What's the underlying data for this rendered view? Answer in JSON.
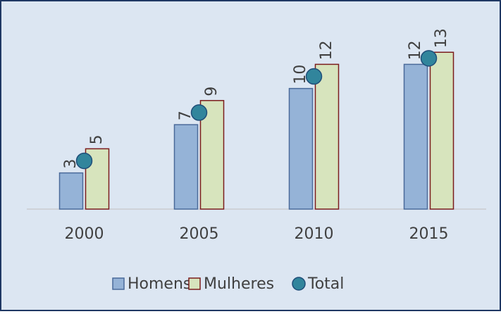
{
  "chart_data": {
    "type": "bar",
    "categories": [
      "2000",
      "2005",
      "2010",
      "2015"
    ],
    "series": [
      {
        "name": "Homens",
        "type": "bar",
        "color": "#95b3d7",
        "edge": "#4a6a9a",
        "values": [
          3,
          7,
          10,
          12
        ]
      },
      {
        "name": "Mulheres",
        "type": "bar",
        "color": "#d7e4bd",
        "edge": "#7b1c1c",
        "values": [
          5,
          9,
          12,
          13
        ]
      },
      {
        "name": "Total",
        "type": "dot",
        "color": "#31859c",
        "edge": "#1f4e79",
        "values": [
          4,
          8,
          11,
          12.5
        ]
      }
    ],
    "ylim": [
      0,
      15
    ],
    "background": "#dce6f2"
  }
}
